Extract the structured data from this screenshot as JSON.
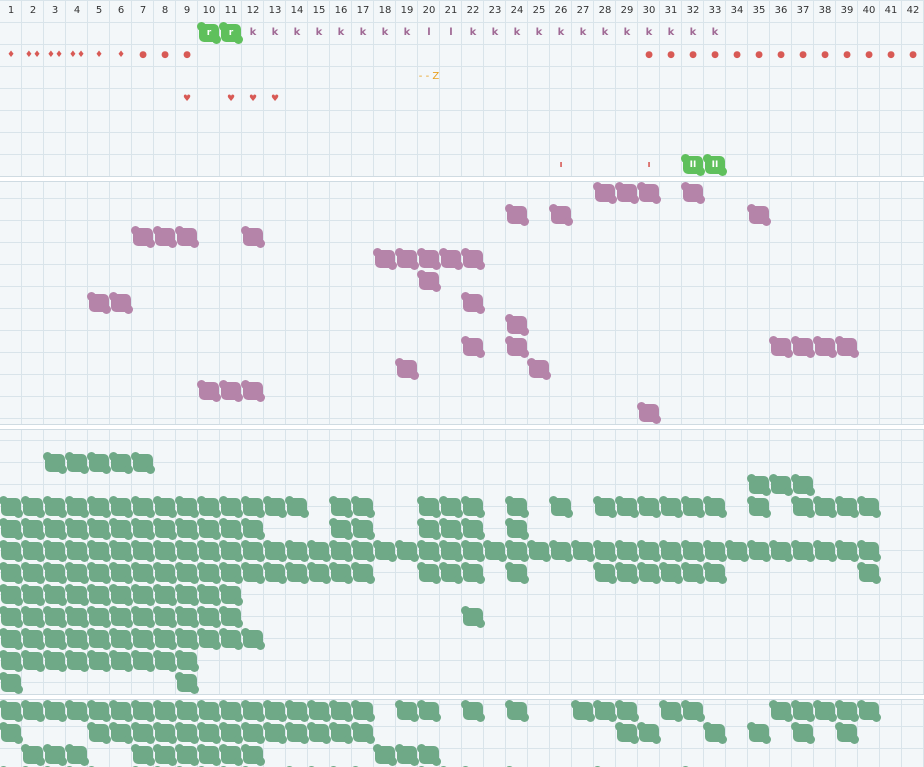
{
  "colors": {
    "green_block": "#6fa987",
    "purple_block": "#b584a9",
    "lime_block": "#5fc05c",
    "marker_red": "#d85a55",
    "k_purple": "#a06a95",
    "z_orange": "#e8a020"
  },
  "header": {
    "columns": [
      "1",
      "2",
      "3",
      "4",
      "5",
      "6",
      "7",
      "8",
      "9",
      "10",
      "11",
      "12",
      "13",
      "14",
      "15",
      "16",
      "17",
      "18",
      "19",
      "20",
      "21",
      "22",
      "23",
      "24",
      "25",
      "26",
      "27",
      "28",
      "29",
      "30",
      "31",
      "32",
      "33",
      "34",
      "35",
      "36",
      "37",
      "38",
      "39",
      "40",
      "41",
      "42"
    ]
  },
  "markers": {
    "row1_lime": [
      {
        "col": 10,
        "text": "r"
      },
      {
        "col": 11,
        "text": "r"
      }
    ],
    "row1_letters": [
      {
        "col": 12,
        "text": "k"
      },
      {
        "col": 13,
        "text": "k"
      },
      {
        "col": 14,
        "text": "k"
      },
      {
        "col": 15,
        "text": "k"
      },
      {
        "col": 16,
        "text": "k"
      },
      {
        "col": 17,
        "text": "k"
      },
      {
        "col": 18,
        "text": "k"
      },
      {
        "col": 19,
        "text": "k"
      },
      {
        "col": 20,
        "text": "l"
      },
      {
        "col": 21,
        "text": "l"
      },
      {
        "col": 22,
        "text": "k"
      },
      {
        "col": 23,
        "text": "k"
      },
      {
        "col": 24,
        "text": "k"
      },
      {
        "col": 25,
        "text": "k"
      },
      {
        "col": 26,
        "text": "k"
      },
      {
        "col": 27,
        "text": "k"
      },
      {
        "col": 28,
        "text": "k"
      },
      {
        "col": 29,
        "text": "k"
      },
      {
        "col": 30,
        "text": "k"
      },
      {
        "col": 31,
        "text": "k"
      },
      {
        "col": 32,
        "text": "k"
      },
      {
        "col": 33,
        "text": "k"
      }
    ],
    "row2_suits": [
      {
        "col": 1,
        "text": "♦"
      },
      {
        "col": 2,
        "text": "♦♦"
      },
      {
        "col": 3,
        "text": "♦♦"
      },
      {
        "col": 4,
        "text": "♦♦"
      },
      {
        "col": 5,
        "text": "♦"
      },
      {
        "col": 6,
        "text": "♦"
      },
      {
        "col": 7,
        "text": "●"
      },
      {
        "col": 8,
        "text": "●"
      },
      {
        "col": 9,
        "text": "●"
      },
      {
        "col": 30,
        "text": "●"
      },
      {
        "col": 31,
        "text": "●"
      },
      {
        "col": 32,
        "text": "●"
      },
      {
        "col": 33,
        "text": "●"
      },
      {
        "col": 34,
        "text": "●"
      },
      {
        "col": 35,
        "text": "●"
      },
      {
        "col": 36,
        "text": "●"
      },
      {
        "col": 37,
        "text": "●"
      },
      {
        "col": 38,
        "text": "●"
      },
      {
        "col": 39,
        "text": "●"
      },
      {
        "col": 40,
        "text": "●"
      },
      {
        "col": 41,
        "text": "●"
      },
      {
        "col": 42,
        "text": "●"
      }
    ],
    "row3_text": [
      {
        "col": 20,
        "text": "- - Z"
      }
    ],
    "row4_hearts": [
      {
        "col": 9,
        "text": "♥"
      },
      {
        "col": 11,
        "text": "♥"
      },
      {
        "col": 12,
        "text": "♥"
      },
      {
        "col": 13,
        "text": "♥"
      }
    ],
    "row7_ticks": [
      {
        "col": 26,
        "text": "ı"
      },
      {
        "col": 30,
        "text": "ı"
      }
    ],
    "row7_lime": [
      {
        "col": 32,
        "text": "II"
      },
      {
        "col": 33,
        "text": "II"
      }
    ]
  },
  "purple_blocks": [
    {
      "row": 8,
      "cols": [
        28,
        29,
        30,
        32
      ]
    },
    {
      "row": 9,
      "cols": [
        24,
        26,
        35
      ]
    },
    {
      "row": 10,
      "cols": [
        7,
        8,
        9,
        12
      ]
    },
    {
      "row": 11,
      "cols": [
        18,
        19,
        20,
        21,
        22
      ]
    },
    {
      "row": 12,
      "cols": [
        20
      ]
    },
    {
      "row": 13,
      "cols": [
        5,
        6,
        22
      ]
    },
    {
      "row": 14,
      "cols": [
        24
      ]
    },
    {
      "row": 15,
      "cols": [
        22,
        24,
        36,
        37,
        38,
        39
      ]
    },
    {
      "row": 16,
      "cols": [
        19,
        25
      ]
    },
    {
      "row": 17,
      "cols": [
        10,
        11,
        12
      ]
    },
    {
      "row": 18,
      "cols": [
        30
      ]
    }
  ],
  "green_blocks": [
    {
      "row": 20,
      "cols": [
        3,
        4,
        5,
        6,
        7
      ]
    },
    {
      "row": 21,
      "cols": [
        35,
        36,
        37
      ]
    },
    {
      "row": 22,
      "cols": [
        1,
        2,
        3,
        4,
        5,
        6,
        7,
        8,
        9,
        10,
        11,
        12,
        13,
        14,
        16,
        17,
        20,
        21,
        22,
        24,
        26,
        28,
        29,
        30,
        31,
        32,
        33,
        35,
        37,
        38,
        39,
        40
      ]
    },
    {
      "row": 23,
      "cols": [
        1,
        2,
        3,
        4,
        5,
        6,
        7,
        8,
        9,
        10,
        11,
        12,
        16,
        17,
        20,
        21,
        22,
        24
      ]
    },
    {
      "row": 24,
      "cols": [
        1,
        2,
        3,
        4,
        5,
        6,
        7,
        8,
        9,
        10,
        11,
        12,
        13,
        14,
        15,
        16,
        17,
        18,
        19,
        20,
        21,
        22,
        23,
        24,
        25,
        26,
        27,
        28,
        29,
        30,
        31,
        32,
        33,
        34,
        35,
        36,
        37,
        38,
        39,
        40
      ]
    },
    {
      "row": 25,
      "cols": [
        1,
        2,
        3,
        4,
        5,
        6,
        7,
        8,
        9,
        10,
        11,
        12,
        13,
        14,
        15,
        16,
        17,
        20,
        21,
        22,
        24,
        28,
        29,
        30,
        31,
        32,
        33,
        40
      ]
    },
    {
      "row": 26,
      "cols": [
        1,
        2,
        3,
        4,
        5,
        6,
        7,
        8,
        9,
        10,
        11
      ]
    },
    {
      "row": 27,
      "cols": [
        1,
        2,
        3,
        4,
        5,
        6,
        7,
        8,
        9,
        10,
        11,
        22
      ]
    },
    {
      "row": 28,
      "cols": [
        1,
        2,
        3,
        4,
        5,
        6,
        7,
        8,
        9,
        10,
        11,
        12
      ]
    },
    {
      "row": 29,
      "cols": [
        1,
        2,
        3,
        4,
        5,
        6,
        7,
        8,
        9
      ]
    },
    {
      "row": 30,
      "cols": [
        1,
        9
      ]
    },
    {
      "row": 31,
      "cols": [
        1,
        2,
        3,
        4,
        5,
        6,
        7,
        8,
        9,
        10,
        11,
        12,
        13,
        14,
        15,
        16,
        17,
        19,
        20,
        22,
        24,
        27,
        28,
        29,
        31,
        32,
        36,
        37,
        38,
        39,
        40
      ]
    },
    {
      "row": 32,
      "cols": [
        1,
        5,
        6,
        7,
        8,
        9,
        10,
        11,
        12,
        13,
        14,
        15,
        16,
        17,
        29,
        30,
        33,
        35,
        37,
        39
      ]
    },
    {
      "row": 33,
      "cols": [
        2,
        3,
        4,
        7,
        8,
        9,
        10,
        11,
        12,
        18,
        19,
        20
      ]
    },
    {
      "row": 34,
      "cols": [
        1,
        2,
        3,
        4,
        5,
        7,
        8,
        9,
        10,
        11,
        12,
        14,
        15,
        16,
        17,
        20,
        21,
        22,
        24,
        28,
        32
      ]
    }
  ]
}
